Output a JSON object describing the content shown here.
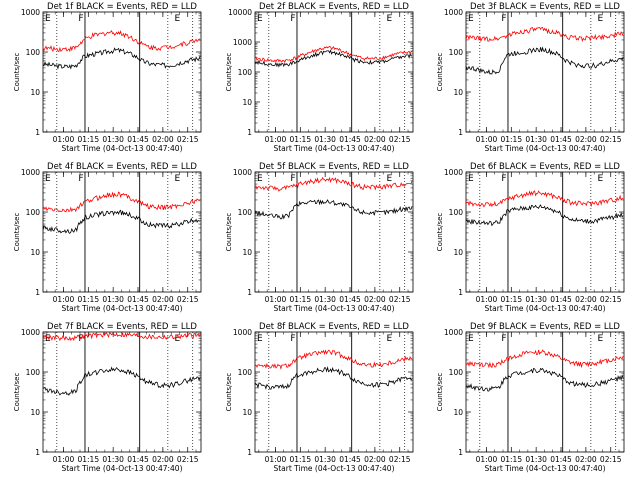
{
  "title_template": "Det {det} BLACK = Events, RED = LLD",
  "xlabel": "Start Time (04-Oct-13 00:47:40)",
  "ylabel": "Counts/sec",
  "x_tick_labels": [
    "01:00",
    "01:15",
    "01:30",
    "01:45",
    "02:00",
    "02:15"
  ],
  "y_tick_labels": [
    "1",
    "10",
    "100",
    "1000"
  ],
  "colors": {
    "events": "#000000",
    "lld": "#ff0000"
  },
  "chart_data": [
    {
      "type": "line",
      "title": "Det 1f BLACK = Events, RED = LLD",
      "det": "1f",
      "yscale": "log",
      "ylim": [
        1,
        1000
      ],
      "markers": [
        {
          "label": "F",
          "time": "01:09"
        },
        {
          "label": "E",
          "time": "02:07"
        }
      ],
      "series": [
        {
          "name": "BLACK = Events",
          "color": "#000000",
          "values": [
            50,
            47,
            44,
            43,
            46,
            78,
            88,
            95,
            105,
            112,
            100,
            82,
            60,
            50,
            48,
            46,
            50,
            58,
            65,
            70,
            72,
            60
          ]
        },
        {
          "name": "RED = LLD",
          "color": "#ff0000",
          "values": [
            125,
            122,
            118,
            120,
            128,
            200,
            255,
            280,
            310,
            305,
            270,
            210,
            155,
            130,
            128,
            132,
            145,
            160,
            185,
            210,
            205,
            175
          ]
        }
      ]
    },
    {
      "type": "line",
      "title": "Det 2f BLACK = Events, RED = LLD",
      "det": "2f",
      "yscale": "log",
      "ylim": [
        1,
        10000
      ],
      "markers": [
        {
          "label": "F",
          "time": "01:09"
        },
        {
          "label": "E",
          "time": "02:07"
        }
      ],
      "series": [
        {
          "name": "BLACK = Events",
          "color": "#000000",
          "values": [
            220,
            200,
            180,
            175,
            180,
            220,
            290,
            360,
            440,
            470,
            420,
            330,
            260,
            220,
            210,
            215,
            240,
            290,
            330,
            360,
            340,
            280
          ]
        },
        {
          "name": "RED = LLD",
          "color": "#ff0000",
          "values": [
            280,
            260,
            240,
            235,
            245,
            300,
            390,
            490,
            600,
            640,
            570,
            440,
            340,
            290,
            280,
            290,
            330,
            390,
            440,
            470,
            450,
            370
          ]
        }
      ]
    },
    {
      "type": "line",
      "title": "Det 3f BLACK = Events, RED = LLD",
      "det": "3f",
      "yscale": "log",
      "ylim": [
        1,
        1000
      ],
      "markers": [
        {
          "label": "F",
          "time": "01:09"
        },
        {
          "label": "E",
          "time": "02:07"
        }
      ],
      "series": [
        {
          "name": "BLACK = Events",
          "color": "#000000",
          "values": [
            42,
            38,
            33,
            30,
            35,
            85,
            95,
            100,
            110,
            118,
            105,
            88,
            62,
            50,
            46,
            45,
            48,
            55,
            62,
            68,
            70,
            60
          ]
        },
        {
          "name": "RED = LLD",
          "color": "#ff0000",
          "values": [
            230,
            225,
            215,
            210,
            220,
            260,
            300,
            330,
            360,
            370,
            340,
            300,
            250,
            225,
            220,
            225,
            235,
            250,
            270,
            290,
            285,
            260
          ]
        }
      ]
    },
    {
      "type": "line",
      "title": "Det 4f BLACK = Events, RED = LLD",
      "det": "4f",
      "yscale": "log",
      "ylim": [
        1,
        1000
      ],
      "markers": [
        {
          "label": "F",
          "time": "01:09"
        },
        {
          "label": "E",
          "time": "02:07"
        }
      ],
      "series": [
        {
          "name": "BLACK = Events",
          "color": "#000000",
          "values": [
            40,
            38,
            35,
            33,
            36,
            70,
            82,
            90,
            95,
            100,
            92,
            76,
            58,
            48,
            46,
            45,
            48,
            54,
            60,
            64,
            66,
            58
          ]
        },
        {
          "name": "RED = LLD",
          "color": "#ff0000",
          "values": [
            120,
            115,
            110,
            108,
            118,
            170,
            210,
            240,
            270,
            280,
            255,
            205,
            160,
            135,
            130,
            132,
            142,
            158,
            180,
            200,
            195,
            170
          ]
        }
      ]
    },
    {
      "type": "line",
      "title": "Det 5f BLACK = Events, RED = LLD",
      "det": "5f",
      "yscale": "log",
      "ylim": [
        1,
        1000
      ],
      "markers": [
        {
          "label": "F",
          "time": "01:09"
        },
        {
          "label": "E",
          "time": "02:07"
        }
      ],
      "series": [
        {
          "name": "BLACK = Events",
          "color": "#000000",
          "values": [
            95,
            88,
            80,
            75,
            78,
            150,
            170,
            180,
            185,
            180,
            165,
            145,
            115,
            100,
            96,
            95,
            100,
            110,
            122,
            130,
            132,
            118
          ]
        },
        {
          "name": "RED = LLD",
          "color": "#ff0000",
          "values": [
            420,
            410,
            395,
            385,
            400,
            470,
            540,
            600,
            640,
            650,
            610,
            540,
            470,
            430,
            420,
            425,
            440,
            470,
            510,
            540,
            530,
            490
          ]
        }
      ]
    },
    {
      "type": "line",
      "title": "Det 6f BLACK = Events, RED = LLD",
      "det": "6f",
      "yscale": "log",
      "ylim": [
        1,
        1000
      ],
      "markers": [
        {
          "label": "F",
          "time": "01:09"
        },
        {
          "label": "E",
          "time": "02:07"
        }
      ],
      "series": [
        {
          "name": "BLACK = Events",
          "color": "#000000",
          "values": [
            60,
            57,
            54,
            52,
            55,
            105,
            118,
            125,
            132,
            136,
            124,
            102,
            76,
            63,
            60,
            59,
            63,
            70,
            78,
            84,
            86,
            76
          ]
        },
        {
          "name": "RED = LLD",
          "color": "#ff0000",
          "values": [
            165,
            160,
            155,
            152,
            160,
            210,
            245,
            270,
            295,
            300,
            275,
            235,
            190,
            168,
            163,
            165,
            175,
            190,
            210,
            230,
            225,
            200
          ]
        }
      ]
    },
    {
      "type": "line",
      "title": "Det 7f BLACK = Events, RED = LLD",
      "det": "7f",
      "yscale": "log",
      "ylim": [
        1,
        1000
      ],
      "markers": [
        {
          "label": "F",
          "time": "01:09"
        },
        {
          "label": "E",
          "time": "02:07"
        }
      ],
      "series": [
        {
          "name": "BLACK = Events",
          "color": "#000000",
          "values": [
            38,
            34,
            31,
            30,
            34,
            80,
            95,
            105,
            112,
            118,
            105,
            88,
            65,
            52,
            48,
            46,
            50,
            58,
            66,
            72,
            74,
            64
          ]
        },
        {
          "name": "RED = LLD",
          "color": "#ff0000",
          "values": [
            760,
            740,
            720,
            700,
            720,
            780,
            820,
            850,
            870,
            880,
            860,
            830,
            790,
            760,
            750,
            755,
            770,
            790,
            810,
            820,
            815,
            790
          ]
        }
      ]
    },
    {
      "type": "line",
      "title": "Det 8f BLACK = Events, RED = LLD",
      "det": "8f",
      "yscale": "log",
      "ylim": [
        1,
        1000
      ],
      "markers": [
        {
          "label": "F",
          "time": "01:09"
        },
        {
          "label": "E",
          "time": "02:07"
        }
      ],
      "series": [
        {
          "name": "BLACK = Events",
          "color": "#000000",
          "values": [
            48,
            45,
            42,
            41,
            44,
            82,
            95,
            104,
            112,
            118,
            106,
            86,
            63,
            52,
            49,
            48,
            52,
            60,
            68,
            74,
            75,
            65
          ]
        },
        {
          "name": "RED = LLD",
          "color": "#ff0000",
          "values": [
            150,
            145,
            138,
            136,
            145,
            205,
            250,
            280,
            310,
            315,
            285,
            235,
            180,
            155,
            150,
            152,
            165,
            185,
            210,
            235,
            228,
            200
          ]
        }
      ]
    },
    {
      "type": "line",
      "title": "Det 9f BLACK = Events, RED = LLD",
      "det": "9f",
      "yscale": "log",
      "ylim": [
        1,
        1000
      ],
      "markers": [
        {
          "label": "F",
          "time": "01:09"
        },
        {
          "label": "E",
          "time": "02:07"
        }
      ],
      "series": [
        {
          "name": "BLACK = Events",
          "color": "#000000",
          "values": [
            45,
            42,
            39,
            38,
            41,
            80,
            92,
            100,
            108,
            113,
            102,
            84,
            62,
            51,
            48,
            47,
            51,
            58,
            66,
            72,
            73,
            63
          ]
        },
        {
          "name": "RED = LLD",
          "color": "#ff0000",
          "values": [
            160,
            155,
            150,
            148,
            156,
            215,
            255,
            285,
            310,
            318,
            290,
            240,
            188,
            162,
            157,
            160,
            172,
            190,
            215,
            238,
            232,
            205
          ]
        }
      ]
    }
  ]
}
